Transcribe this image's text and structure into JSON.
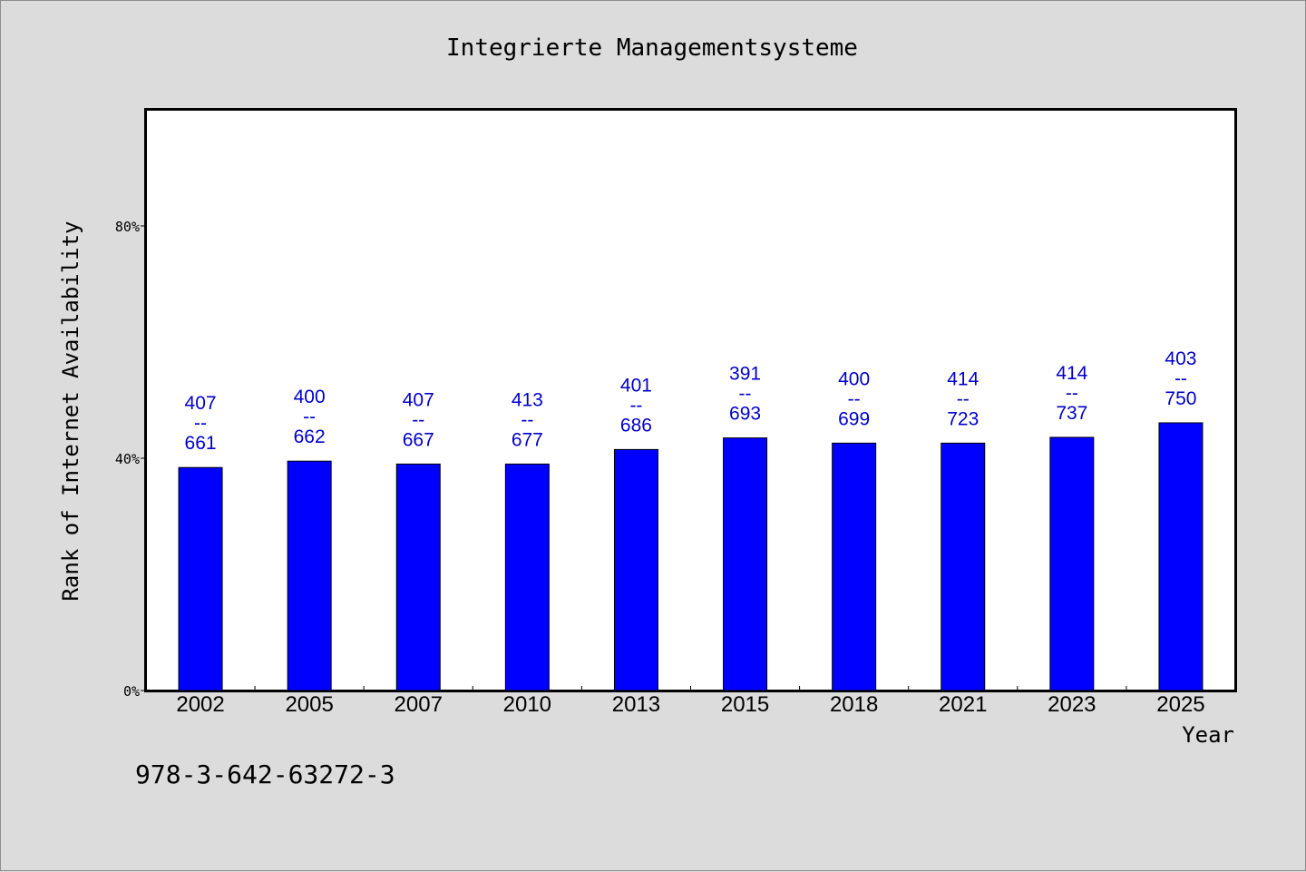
{
  "chart_data": {
    "type": "bar",
    "title": "Integrierte Managementsysteme",
    "xlabel": "Year",
    "ylabel": "Rank of Internet Availability",
    "ylim": [
      0,
      100
    ],
    "yticks": [
      0,
      40,
      80
    ],
    "ytick_labels": [
      "0%",
      "40%",
      "80%"
    ],
    "grid": false,
    "categories": [
      "2002",
      "2005",
      "2007",
      "2010",
      "2013",
      "2015",
      "2018",
      "2021",
      "2023",
      "2025"
    ],
    "values": [
      38.4,
      39.5,
      39.0,
      39.0,
      41.5,
      43.5,
      42.6,
      42.6,
      43.6,
      46.1
    ],
    "data_labels": [
      [
        "407",
        "--",
        "661"
      ],
      [
        "400",
        "--",
        "662"
      ],
      [
        "407",
        "--",
        "667"
      ],
      [
        "413",
        "--",
        "677"
      ],
      [
        "401",
        "--",
        "686"
      ],
      [
        "391",
        "--",
        "693"
      ],
      [
        "400",
        "--",
        "699"
      ],
      [
        "414",
        "--",
        "723"
      ],
      [
        "414",
        "--",
        "737"
      ],
      [
        "403",
        "--",
        "750"
      ]
    ],
    "bar_color": "#0000ff",
    "label_color": "#0000cc"
  },
  "footer_text": "978-3-642-63272-3"
}
